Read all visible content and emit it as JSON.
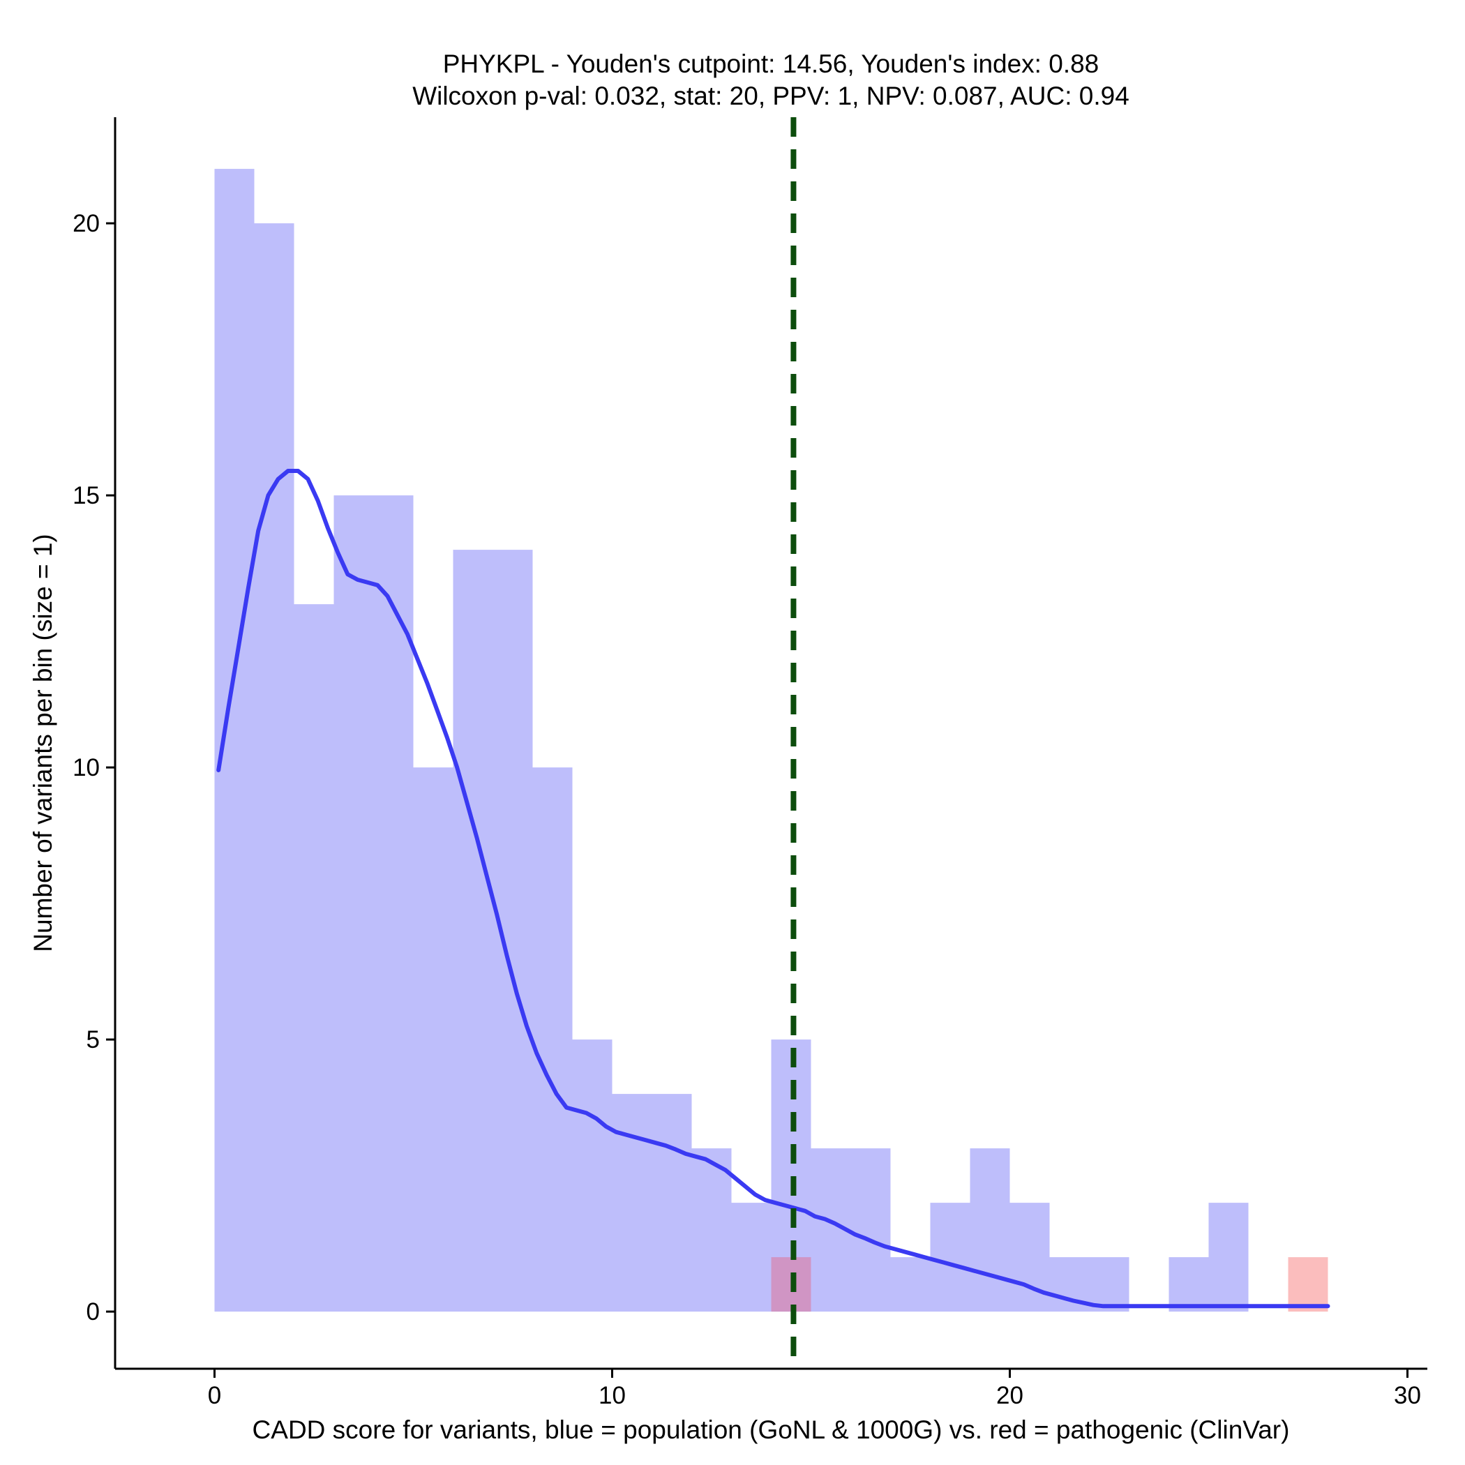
{
  "chart_data": {
    "type": "bar",
    "title_lines": [
      "PHYKPL - Youden's cutpoint: 14.56, Youden's index: 0.88",
      "Wilcoxon p-val: 0.032, stat: 20, PPV: 1, NPV: 0.087, AUC: 0.94"
    ],
    "xlabel": "CADD score for variants, blue = population (GoNL & 1000G) vs. red = pathogenic (ClinVar)",
    "ylabel": "Number of variants per bin (size = 1)",
    "xlim": [
      -2.5,
      30.5
    ],
    "ylim": [
      -1.05,
      21.95
    ],
    "xticks": [
      0,
      10,
      20,
      30
    ],
    "yticks": [
      0,
      5,
      10,
      15,
      20
    ],
    "bin_size": 1,
    "colors": {
      "population": "#bebefb",
      "pathogenic": "#fbbdbd",
      "overlap": "#d095c4",
      "density": "#3a3af2",
      "cutpoint": "#0d4d0d"
    },
    "series": [
      {
        "name": "population",
        "bin_starts": [
          0,
          1,
          2,
          3,
          4,
          5,
          6,
          7,
          8,
          9,
          10,
          11,
          12,
          13,
          14,
          15,
          16,
          17,
          18,
          19,
          20,
          21,
          22,
          23,
          24,
          25,
          26,
          27
        ],
        "values": [
          21,
          20,
          13,
          15,
          15,
          10,
          14,
          14,
          10,
          5,
          4,
          4,
          3,
          2,
          5,
          3,
          3,
          1,
          2,
          3,
          2,
          1,
          1,
          0,
          1,
          2,
          0,
          0
        ]
      },
      {
        "name": "pathogenic",
        "bin_starts": [
          14,
          27
        ],
        "values": [
          1,
          1
        ]
      }
    ],
    "density_curve": {
      "x": [
        0.1,
        0.35,
        0.6,
        0.85,
        1.1,
        1.35,
        1.6,
        1.85,
        2.1,
        2.35,
        2.6,
        2.85,
        3.1,
        3.35,
        3.6,
        3.85,
        4.1,
        4.35,
        4.6,
        4.85,
        5.1,
        5.35,
        5.6,
        5.85,
        6.1,
        6.35,
        6.6,
        6.85,
        7.1,
        7.35,
        7.6,
        7.85,
        8.1,
        8.35,
        8.6,
        8.85,
        9.1,
        9.35,
        9.6,
        9.85,
        10.1,
        10.35,
        10.6,
        10.85,
        11.1,
        11.35,
        11.6,
        11.85,
        12.1,
        12.35,
        12.6,
        12.85,
        13.1,
        13.35,
        13.6,
        13.85,
        14.1,
        14.35,
        14.6,
        14.85,
        15.1,
        15.35,
        15.6,
        15.85,
        16.1,
        16.35,
        16.6,
        16.85,
        17.1,
        17.35,
        17.6,
        17.85,
        18.1,
        18.35,
        18.6,
        18.85,
        19.1,
        19.35,
        19.6,
        19.85,
        20.1,
        20.35,
        20.6,
        20.85,
        21.1,
        21.35,
        21.6,
        21.85,
        22.1,
        22.35,
        22.6,
        22.85,
        23.1,
        23.35,
        23.6,
        23.85,
        24.1,
        24.35,
        24.6,
        24.85,
        25.1,
        25.35,
        25.6,
        25.85,
        26.1,
        26.35,
        26.6,
        26.85,
        27.1,
        27.35,
        27.6,
        27.85,
        28.0
      ],
      "y": [
        9.95,
        11.1,
        12.2,
        13.3,
        14.35,
        15.0,
        15.3,
        15.45,
        15.45,
        15.3,
        14.9,
        14.4,
        13.95,
        13.55,
        13.45,
        13.4,
        13.35,
        13.15,
        12.8,
        12.45,
        12.0,
        11.55,
        11.05,
        10.55,
        10.0,
        9.35,
        8.7,
        8.0,
        7.3,
        6.55,
        5.85,
        5.25,
        4.75,
        4.35,
        4.0,
        3.75,
        3.7,
        3.65,
        3.55,
        3.4,
        3.3,
        3.25,
        3.2,
        3.15,
        3.1,
        3.05,
        2.98,
        2.9,
        2.85,
        2.8,
        2.7,
        2.6,
        2.45,
        2.3,
        2.15,
        2.05,
        2.0,
        1.95,
        1.9,
        1.85,
        1.75,
        1.7,
        1.62,
        1.52,
        1.42,
        1.35,
        1.27,
        1.2,
        1.15,
        1.1,
        1.05,
        1.0,
        0.95,
        0.9,
        0.85,
        0.8,
        0.75,
        0.7,
        0.65,
        0.6,
        0.55,
        0.5,
        0.42,
        0.35,
        0.3,
        0.25,
        0.2,
        0.16,
        0.12,
        0.1,
        0.1,
        0.1,
        0.1,
        0.1,
        0.1,
        0.1,
        0.1,
        0.1,
        0.1,
        0.1,
        0.1,
        0.1,
        0.1,
        0.1,
        0.1,
        0.1,
        0.1,
        0.1,
        0.1,
        0.1,
        0.1,
        0.1,
        0.1
      ]
    },
    "cutpoint": 14.56
  }
}
